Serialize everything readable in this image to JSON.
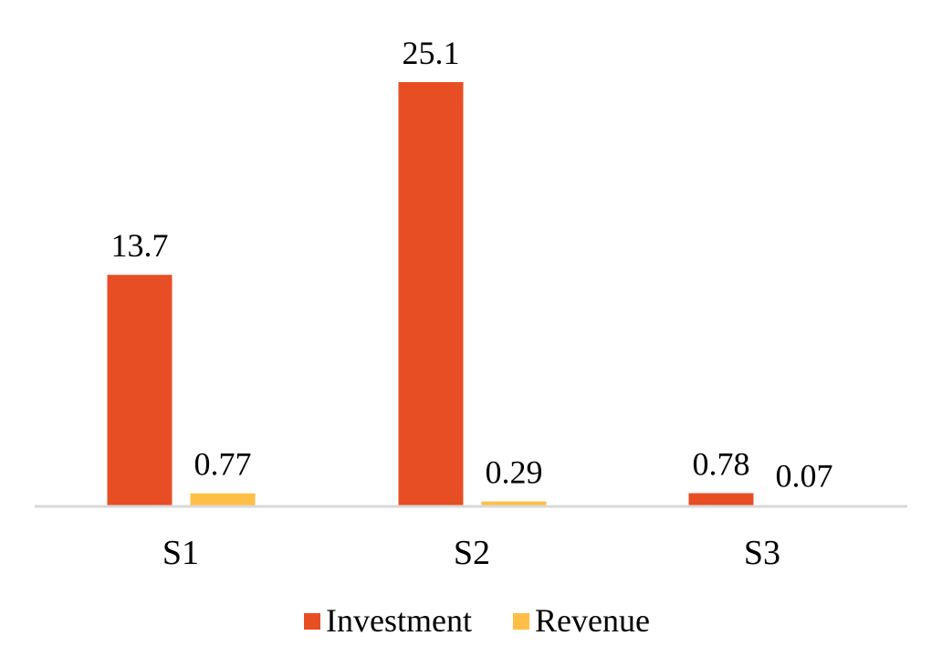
{
  "chart_data": {
    "type": "bar",
    "title": "",
    "xlabel": "",
    "ylabel": "",
    "categories": [
      "S1",
      "S2",
      "S3"
    ],
    "series": [
      {
        "name": "Investment",
        "color": "#E84E24",
        "values": [
          13.7,
          25.1,
          0.78
        ],
        "labels": [
          "13.7",
          "25.1",
          "0.78"
        ]
      },
      {
        "name": "Revenue",
        "color": "#FFBE45",
        "values": [
          0.77,
          0.29,
          0.07
        ],
        "labels": [
          "0.77",
          "0.29",
          "0.07"
        ]
      }
    ],
    "ylim": [
      0,
      25.1
    ],
    "y_axis_visible": false,
    "grid": false,
    "legend": "bottom-center",
    "axis_color": "#D9D9D9"
  }
}
